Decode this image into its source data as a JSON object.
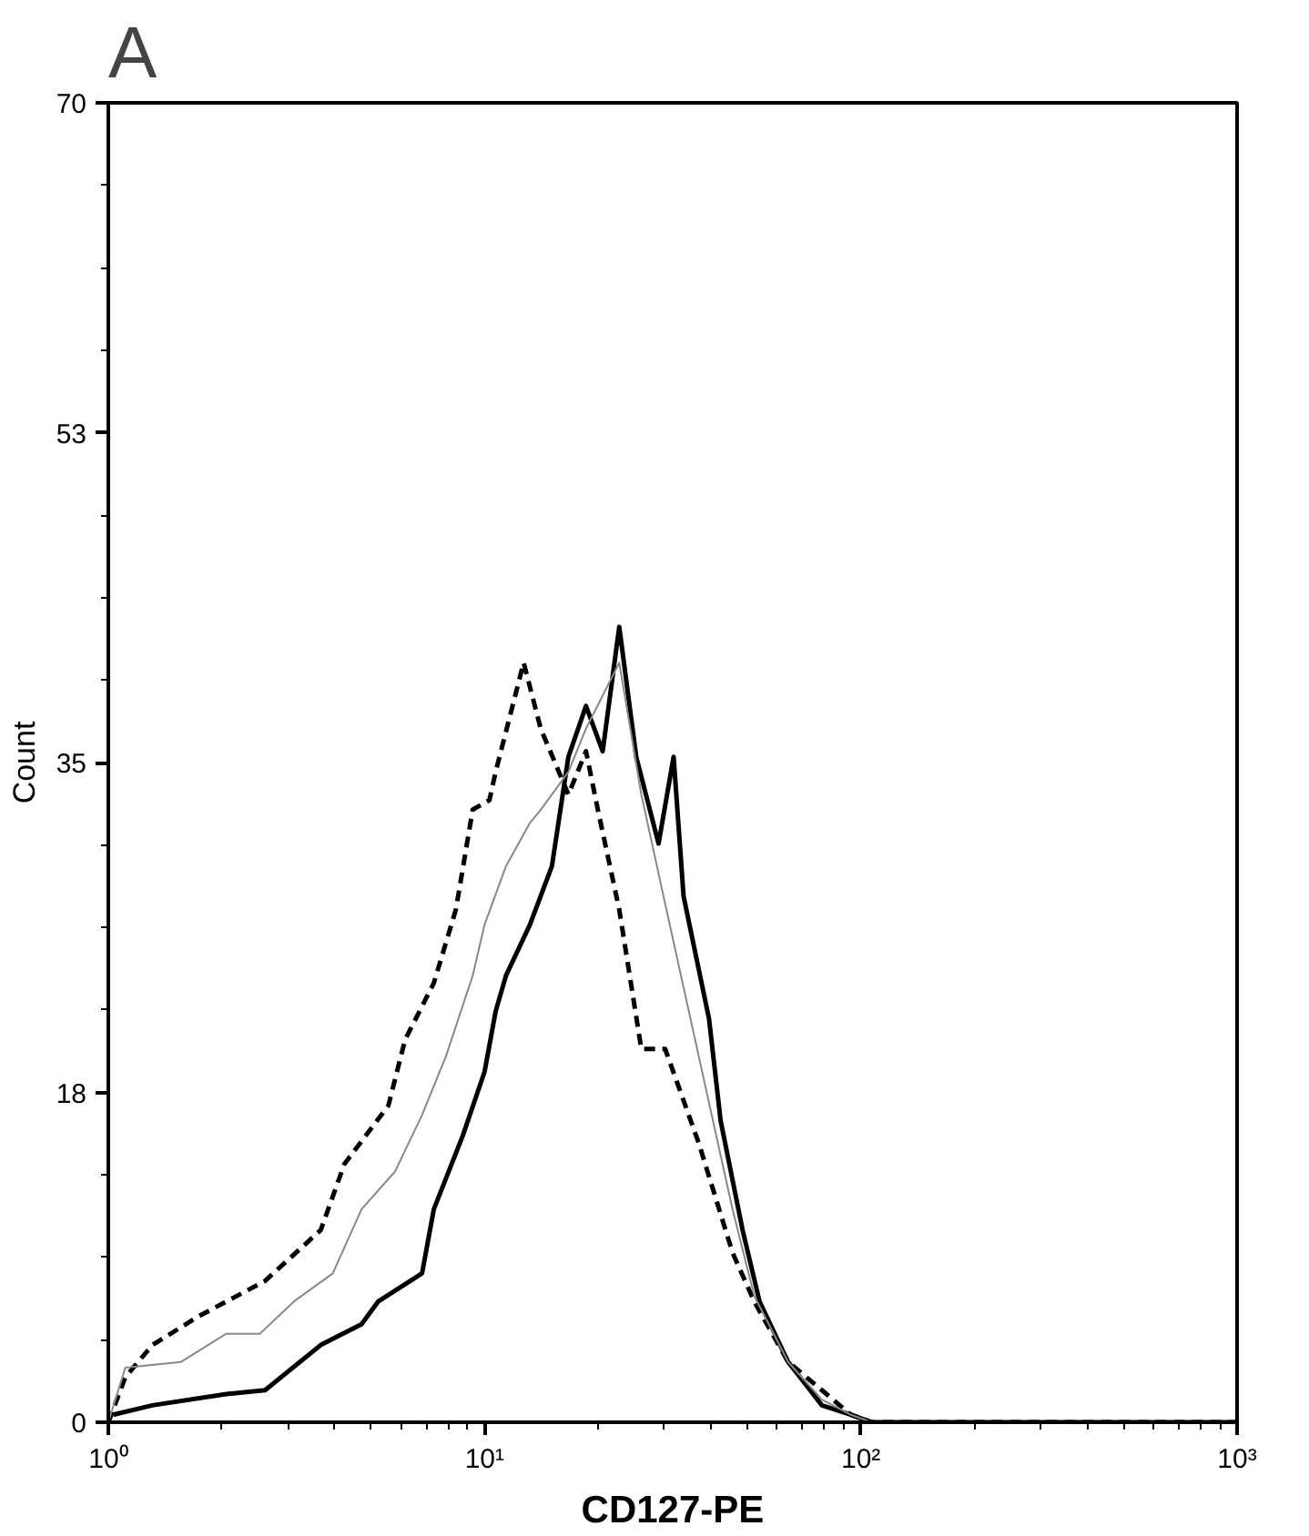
{
  "chart_data": {
    "type": "line",
    "xlabel": "CD127-PE",
    "ylabel": "Count",
    "annotations": [
      "A"
    ],
    "log": "x",
    "grid": false,
    "xlim": [
      1,
      1000
    ],
    "xticks": [
      {
        "value": 1,
        "label": "10⁰"
      },
      {
        "value": 10,
        "label": "10¹"
      },
      {
        "value": 100,
        "label": "10²"
      },
      {
        "value": 1000,
        "label": "10³"
      }
    ],
    "ylim": [
      0,
      70
    ],
    "yticks": [
      0,
      {
        "value": 17.5,
        "label": "18"
      },
      35,
      {
        "value": 52.5,
        "label": "53"
      },
      70
    ],
    "series": [
      {
        "color": "#000000",
        "line_style": "solid",
        "x": [
          1.03,
          1.31,
          2.06,
          2.61,
          3.67,
          4.71,
          5.21,
          6.82,
          7.33,
          8.75,
          10,
          10.7,
          11.4,
          13.2,
          15.1,
          16.7,
          18.6,
          20.6,
          22.8,
          25.3,
          29.0,
          31.8,
          33.8,
          39.5,
          42.4,
          48.5,
          53.8,
          64.1,
          78.8,
          94,
          107,
          1000
        ],
        "values": [
          0.4,
          0.9,
          1.5,
          1.7,
          4.1,
          5.2,
          6.4,
          7.9,
          11.3,
          15.2,
          18.6,
          21.8,
          23.7,
          26.4,
          29.5,
          35.3,
          38.0,
          35.6,
          42.2,
          35.3,
          30.7,
          35.3,
          27.9,
          21.4,
          16.0,
          10.2,
          6.4,
          3.2,
          0.9,
          0.4,
          0,
          0
        ]
      },
      {
        "color": "#000000",
        "line_style": "dashed",
        "x": [
          1.0,
          1.11,
          1.31,
          1.73,
          2.61,
          3.67,
          4.24,
          5.55,
          6.15,
          7.33,
          8.39,
          9.3,
          10.3,
          10.7,
          12.7,
          14.1,
          16.7,
          18.6,
          20.0,
          22.8,
          26.1,
          30.2,
          37.1,
          45.6,
          52.1,
          64.1,
          78.8,
          94,
          107,
          1000
        ],
        "values": [
          0,
          2.4,
          4.1,
          5.6,
          7.5,
          10.2,
          13.7,
          16.8,
          20.3,
          23.3,
          27.2,
          32.5,
          33.0,
          34.5,
          40.3,
          36.8,
          33.3,
          35.6,
          32.5,
          27.2,
          19.8,
          19.8,
          14.8,
          9.0,
          6.4,
          3.2,
          1.7,
          0.4,
          0,
          0
        ]
      },
      {
        "color": "#888888",
        "line_style": "solid",
        "x": [
          1.0,
          1.11,
          1.56,
          2.06,
          2.53,
          3.11,
          3.95,
          4.71,
          5.78,
          6.82,
          7.89,
          9.3,
          10,
          11.4,
          13.2,
          14.1,
          16.7,
          18.6,
          22.8,
          26.1,
          30.2,
          37.1,
          45.6,
          52.1,
          64.1,
          78.8,
          94,
          107,
          1000
        ],
        "values": [
          0,
          2.9,
          3.2,
          4.7,
          4.7,
          6.4,
          7.9,
          11.3,
          13.3,
          16.3,
          19.4,
          23.7,
          26.4,
          29.5,
          31.8,
          32.5,
          34.5,
          36.8,
          40.3,
          33.3,
          27.5,
          19.4,
          11.3,
          6.7,
          3.2,
          1.2,
          0.4,
          0,
          0
        ]
      }
    ]
  }
}
